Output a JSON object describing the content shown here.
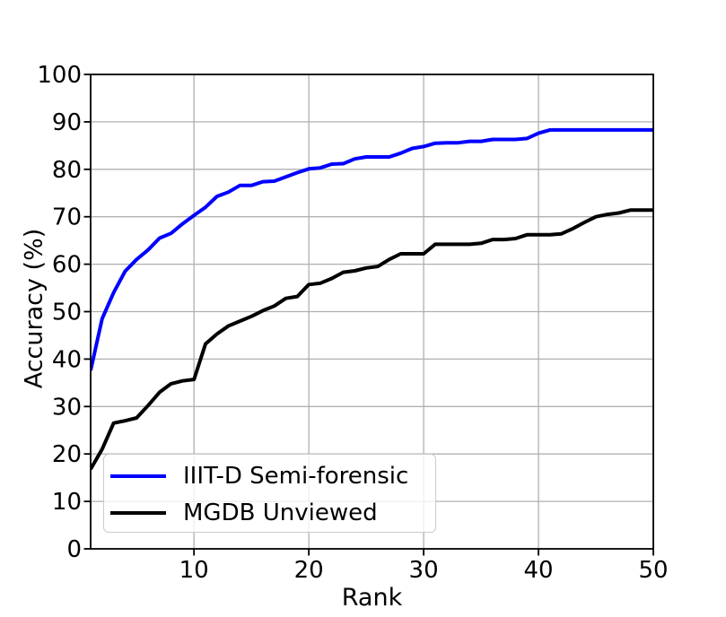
{
  "figure": {
    "background": "#ffffff"
  },
  "chart_data": {
    "type": "line",
    "title": "",
    "xlabel": "Rank",
    "ylabel": "Accuracy (%)",
    "xlim": [
      1,
      50
    ],
    "ylim": [
      0,
      100
    ],
    "xticks": [
      10,
      20,
      30,
      40,
      50
    ],
    "yticks": [
      0,
      10,
      20,
      30,
      40,
      50,
      60,
      70,
      80,
      90,
      100
    ],
    "grid": true,
    "grid_color": "#b0b0b0",
    "axis_color": "#000000",
    "legend_position": "lower left",
    "x": [
      1,
      2,
      3,
      4,
      5,
      6,
      7,
      8,
      9,
      10,
      11,
      12,
      13,
      14,
      15,
      16,
      17,
      18,
      19,
      20,
      21,
      22,
      23,
      24,
      25,
      26,
      27,
      28,
      29,
      30,
      31,
      32,
      33,
      34,
      35,
      36,
      37,
      38,
      39,
      40,
      41,
      42,
      43,
      44,
      45,
      46,
      47,
      48,
      49,
      50
    ],
    "series": [
      {
        "name": "IIIT-D Semi-forensic",
        "color": "#0000ff",
        "values": [
          37.6,
          48.5,
          54,
          58.5,
          61,
          63,
          65.5,
          66.5,
          68.5,
          70.3,
          72,
          74.3,
          75.2,
          76.6,
          76.6,
          77.4,
          77.5,
          78.4,
          79.3,
          80.1,
          80.3,
          81.1,
          81.2,
          82.2,
          82.6,
          82.6,
          82.6,
          83.4,
          84.4,
          84.8,
          85.5,
          85.6,
          85.6,
          85.9,
          85.9,
          86.3,
          86.3,
          86.3,
          86.5,
          87.6,
          88.3,
          88.3,
          88.3,
          88.3,
          88.3,
          88.3,
          88.3,
          88.3,
          88.3,
          88.3
        ]
      },
      {
        "name": "MGDB Unviewed",
        "color": "#000000",
        "values": [
          16.8,
          21,
          26.5,
          27,
          27.6,
          30.2,
          33,
          34.8,
          35.4,
          35.7,
          43.2,
          45.3,
          47,
          48,
          49,
          50.2,
          51.2,
          52.8,
          53.2,
          55.7,
          56,
          57,
          58.3,
          58.6,
          59.2,
          59.5,
          61,
          62.2,
          62.2,
          62.2,
          64.2,
          64.2,
          64.2,
          64.2,
          64.4,
          65.2,
          65.2,
          65.4,
          66.2,
          66.2,
          66.2,
          66.4,
          67.5,
          68.8,
          70,
          70.5,
          70.8,
          71.4,
          71.4,
          71.4
        ]
      }
    ]
  }
}
